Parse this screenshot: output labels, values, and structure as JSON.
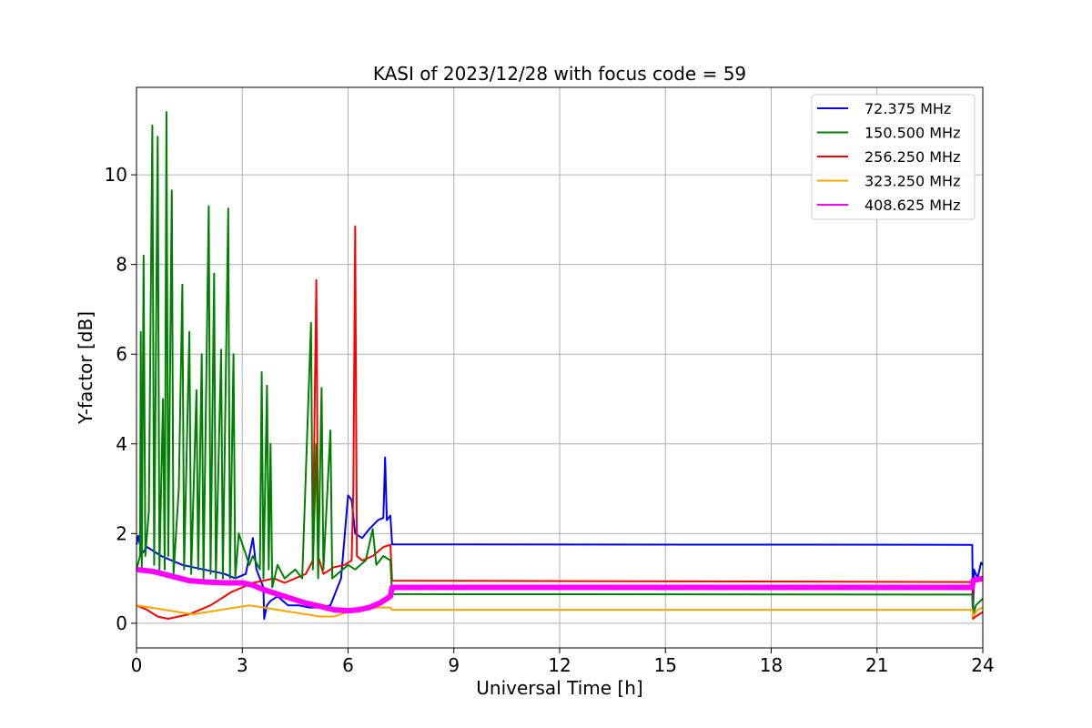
{
  "chart_data": {
    "type": "line",
    "title": "KASI of 2023/12/28 with focus code = 59",
    "xlabel": "Universal Time [h]",
    "ylabel": "Y-factor [dB]",
    "xlim": [
      0,
      24
    ],
    "ylim": [
      -0.55,
      11.95
    ],
    "xticks": [
      0,
      3,
      6,
      9,
      12,
      15,
      18,
      21,
      24
    ],
    "xtick_labels": [
      "0",
      "3",
      "6",
      "9",
      "12",
      "15",
      "18",
      "21",
      "24"
    ],
    "yticks": [
      0,
      2,
      4,
      6,
      8,
      10
    ],
    "ytick_labels": [
      "0",
      "2",
      "4",
      "6",
      "8",
      "10"
    ],
    "grid": true,
    "legend_position": "top-right",
    "series": [
      {
        "name": " 72.375 MHz",
        "color": "#0000ff",
        "points": [
          [
            0,
            1.75
          ],
          [
            0.05,
            1.95
          ],
          [
            0.15,
            1.55
          ],
          [
            0.3,
            1.7
          ],
          [
            0.5,
            1.6
          ],
          [
            0.7,
            1.5
          ],
          [
            1.0,
            1.4
          ],
          [
            1.3,
            1.3
          ],
          [
            1.6,
            1.25
          ],
          [
            1.9,
            1.2
          ],
          [
            2.2,
            1.15
          ],
          [
            2.5,
            1.1
          ],
          [
            2.8,
            1.0
          ],
          [
            3.1,
            1.1
          ],
          [
            3.3,
            1.9
          ],
          [
            3.4,
            1.2
          ],
          [
            3.6,
            0.8
          ],
          [
            3.62,
            0.1
          ],
          [
            3.7,
            0.4
          ],
          [
            3.8,
            0.5
          ],
          [
            4.0,
            0.6
          ],
          [
            4.3,
            0.4
          ],
          [
            4.6,
            0.4
          ],
          [
            4.9,
            0.35
          ],
          [
            5.2,
            0.35
          ],
          [
            5.5,
            0.4
          ],
          [
            5.8,
            1.0
          ],
          [
            6.0,
            2.85
          ],
          [
            6.1,
            2.75
          ],
          [
            6.2,
            2.0
          ],
          [
            6.4,
            1.9
          ],
          [
            6.6,
            2.1
          ],
          [
            6.85,
            2.3
          ],
          [
            7.0,
            2.35
          ],
          [
            7.05,
            3.7
          ],
          [
            7.1,
            2.3
          ],
          [
            7.2,
            2.4
          ],
          [
            7.25,
            1.76
          ],
          [
            23.7,
            1.75
          ],
          [
            23.72,
            0.2
          ],
          [
            23.75,
            1.2
          ],
          [
            23.85,
            1.0
          ],
          [
            23.95,
            1.35
          ],
          [
            24,
            1.3
          ]
        ]
      },
      {
        "name": "150.500 MHz",
        "color": "#008000",
        "points": [
          [
            0,
            1.2
          ],
          [
            0.1,
            1.5
          ],
          [
            0.12,
            6.5
          ],
          [
            0.15,
            1.2
          ],
          [
            0.2,
            8.2
          ],
          [
            0.25,
            1.5
          ],
          [
            0.35,
            2.5
          ],
          [
            0.45,
            11.1
          ],
          [
            0.5,
            1.3
          ],
          [
            0.6,
            10.85
          ],
          [
            0.65,
            1.2
          ],
          [
            0.75,
            5.0
          ],
          [
            0.8,
            1.2
          ],
          [
            0.85,
            11.4
          ],
          [
            0.9,
            1.5
          ],
          [
            1.0,
            9.65
          ],
          [
            1.05,
            1.1
          ],
          [
            1.2,
            3.0
          ],
          [
            1.3,
            7.55
          ],
          [
            1.35,
            1.2
          ],
          [
            1.5,
            6.5
          ],
          [
            1.55,
            1.1
          ],
          [
            1.7,
            5.2
          ],
          [
            1.75,
            1.2
          ],
          [
            1.85,
            6.0
          ],
          [
            1.9,
            1.0
          ],
          [
            2.05,
            9.3
          ],
          [
            2.1,
            1.1
          ],
          [
            2.2,
            7.8
          ],
          [
            2.25,
            1.0
          ],
          [
            2.4,
            6.1
          ],
          [
            2.45,
            1.0
          ],
          [
            2.6,
            9.25
          ],
          [
            2.65,
            1.0
          ],
          [
            2.75,
            6.0
          ],
          [
            2.8,
            1.0
          ],
          [
            2.9,
            2.0
          ],
          [
            3.2,
            1.3
          ],
          [
            3.3,
            1.5
          ],
          [
            3.5,
            1.2
          ],
          [
            3.55,
            5.6
          ],
          [
            3.6,
            1.0
          ],
          [
            3.7,
            5.3
          ],
          [
            3.75,
            1.2
          ],
          [
            3.8,
            4.0
          ],
          [
            3.85,
            0.8
          ],
          [
            4.0,
            1.3
          ],
          [
            4.2,
            1.0
          ],
          [
            4.5,
            1.2
          ],
          [
            4.7,
            1.0
          ],
          [
            4.95,
            6.7
          ],
          [
            5.0,
            1.2
          ],
          [
            5.1,
            4.0
          ],
          [
            5.15,
            1.0
          ],
          [
            5.25,
            5.25
          ],
          [
            5.3,
            1.2
          ],
          [
            5.5,
            4.3
          ],
          [
            5.55,
            1.0
          ],
          [
            5.7,
            1.1
          ],
          [
            6.0,
            1.3
          ],
          [
            6.2,
            1.2
          ],
          [
            6.5,
            1.4
          ],
          [
            6.7,
            2.1
          ],
          [
            6.8,
            1.3
          ],
          [
            7.0,
            1.5
          ],
          [
            7.2,
            1.4
          ],
          [
            7.25,
            0.65
          ],
          [
            23.7,
            0.64
          ],
          [
            23.72,
            0.15
          ],
          [
            23.8,
            0.4
          ],
          [
            24,
            0.55
          ]
        ]
      },
      {
        "name": "256.250 MHz",
        "color": "#ff0000",
        "points": [
          [
            0,
            0.4
          ],
          [
            0.3,
            0.3
          ],
          [
            0.6,
            0.15
          ],
          [
            0.9,
            0.1
          ],
          [
            1.2,
            0.15
          ],
          [
            1.5,
            0.2
          ],
          [
            1.8,
            0.3
          ],
          [
            2.1,
            0.4
          ],
          [
            2.4,
            0.55
          ],
          [
            2.7,
            0.7
          ],
          [
            3.0,
            0.8
          ],
          [
            3.3,
            0.9
          ],
          [
            3.6,
            0.95
          ],
          [
            3.9,
            1.0
          ],
          [
            4.2,
            0.9
          ],
          [
            4.5,
            1.0
          ],
          [
            4.8,
            1.1
          ],
          [
            5.0,
            1.4
          ],
          [
            5.05,
            4.7
          ],
          [
            5.1,
            7.65
          ],
          [
            5.15,
            1.5
          ],
          [
            5.3,
            1.1
          ],
          [
            5.6,
            1.25
          ],
          [
            5.9,
            1.3
          ],
          [
            6.1,
            1.4
          ],
          [
            6.15,
            3.0
          ],
          [
            6.2,
            8.85
          ],
          [
            6.25,
            1.5
          ],
          [
            6.4,
            1.4
          ],
          [
            6.7,
            1.5
          ],
          [
            7.0,
            1.7
          ],
          [
            7.2,
            1.75
          ],
          [
            7.25,
            0.95
          ],
          [
            23.7,
            0.92
          ],
          [
            23.72,
            0.1
          ],
          [
            23.8,
            0.15
          ],
          [
            24,
            0.25
          ]
        ]
      },
      {
        "name": "323.250 MHz",
        "color": "#ffa500",
        "points": [
          [
            0,
            0.4
          ],
          [
            0.4,
            0.35
          ],
          [
            0.8,
            0.3
          ],
          [
            1.2,
            0.25
          ],
          [
            1.6,
            0.2
          ],
          [
            2.0,
            0.25
          ],
          [
            2.4,
            0.3
          ],
          [
            2.8,
            0.35
          ],
          [
            3.2,
            0.4
          ],
          [
            3.6,
            0.35
          ],
          [
            4.0,
            0.3
          ],
          [
            4.4,
            0.25
          ],
          [
            4.8,
            0.2
          ],
          [
            5.2,
            0.15
          ],
          [
            5.6,
            0.15
          ],
          [
            6.0,
            0.25
          ],
          [
            6.4,
            0.3
          ],
          [
            6.8,
            0.35
          ],
          [
            7.2,
            0.35
          ],
          [
            7.25,
            0.3
          ],
          [
            23.7,
            0.3
          ],
          [
            23.72,
            0.15
          ],
          [
            23.85,
            0.3
          ],
          [
            24,
            0.35
          ]
        ]
      },
      {
        "name": "408.625 MHz",
        "color": "#ff00ff",
        "points": [
          [
            0,
            1.2
          ],
          [
            0.5,
            1.15
          ],
          [
            1.0,
            1.05
          ],
          [
            1.5,
            0.95
          ],
          [
            2.0,
            0.92
          ],
          [
            2.5,
            0.9
          ],
          [
            3.0,
            0.9
          ],
          [
            3.3,
            0.85
          ],
          [
            3.6,
            0.75
          ],
          [
            4.0,
            0.65
          ],
          [
            4.4,
            0.55
          ],
          [
            4.8,
            0.45
          ],
          [
            5.2,
            0.38
          ],
          [
            5.6,
            0.3
          ],
          [
            6.0,
            0.28
          ],
          [
            6.3,
            0.3
          ],
          [
            6.6,
            0.35
          ],
          [
            6.9,
            0.45
          ],
          [
            7.2,
            0.6
          ],
          [
            7.25,
            0.8
          ],
          [
            23.7,
            0.8
          ],
          [
            23.72,
            0.95
          ],
          [
            24,
            1.0
          ]
        ]
      }
    ]
  }
}
